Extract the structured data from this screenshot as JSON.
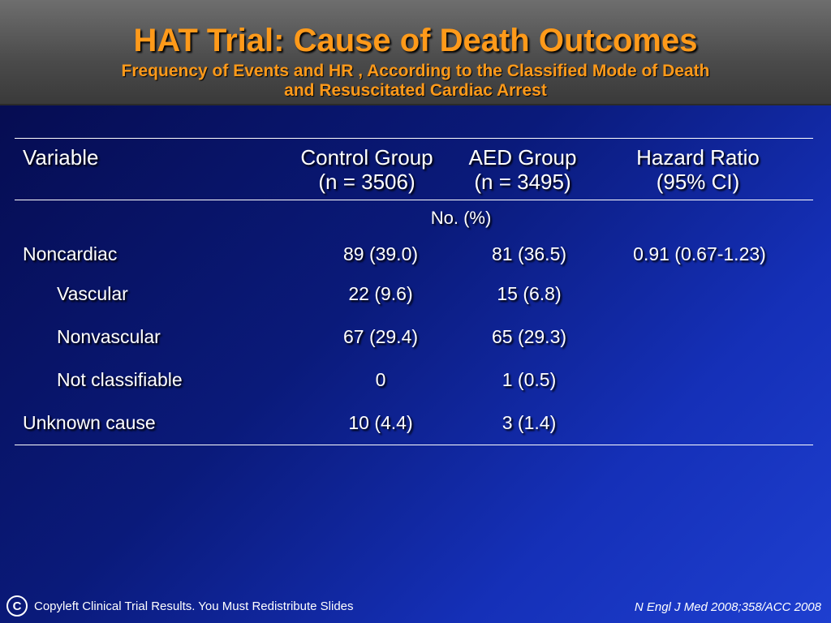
{
  "header": {
    "title": "HAT Trial: Cause of Death Outcomes",
    "subtitle_line1": "Frequency of Events and HR , According to the Classified Mode of Death",
    "subtitle_line2": "and Resuscitated Cardiac Arrest"
  },
  "table": {
    "columns": {
      "variable": "Variable",
      "control_line1": "Control Group",
      "control_line2": "(n = 3506)",
      "aed_line1": "AED Group",
      "aed_line2": "(n = 3495)",
      "hr_line1": "Hazard Ratio",
      "hr_line2": "(95% CI)"
    },
    "units": "No. (%)",
    "rows": [
      {
        "label": "Noncardiac",
        "control": "89 (39.0)",
        "aed": "81 (36.5)",
        "hr": "0.91 (0.67-1.23)"
      },
      {
        "label": "Vascular",
        "control": "22 (9.6)",
        "aed": "15 (6.8)",
        "hr": ""
      },
      {
        "label": "Nonvascular",
        "control": "67 (29.4)",
        "aed": "65 (29.3)",
        "hr": ""
      },
      {
        "label": "Not classifiable",
        "control": "0",
        "aed": "1 (0.5)",
        "hr": ""
      },
      {
        "label": "Unknown cause",
        "control": "10 (4.4)",
        "aed": "3 (1.4)",
        "hr": ""
      }
    ]
  },
  "footer": {
    "copyleft_symbol": "C",
    "left_text": "Copyleft Clinical Trial Results. You Must Redistribute Slides",
    "citation": "N Engl J Med 2008;358/ACC 2008"
  }
}
